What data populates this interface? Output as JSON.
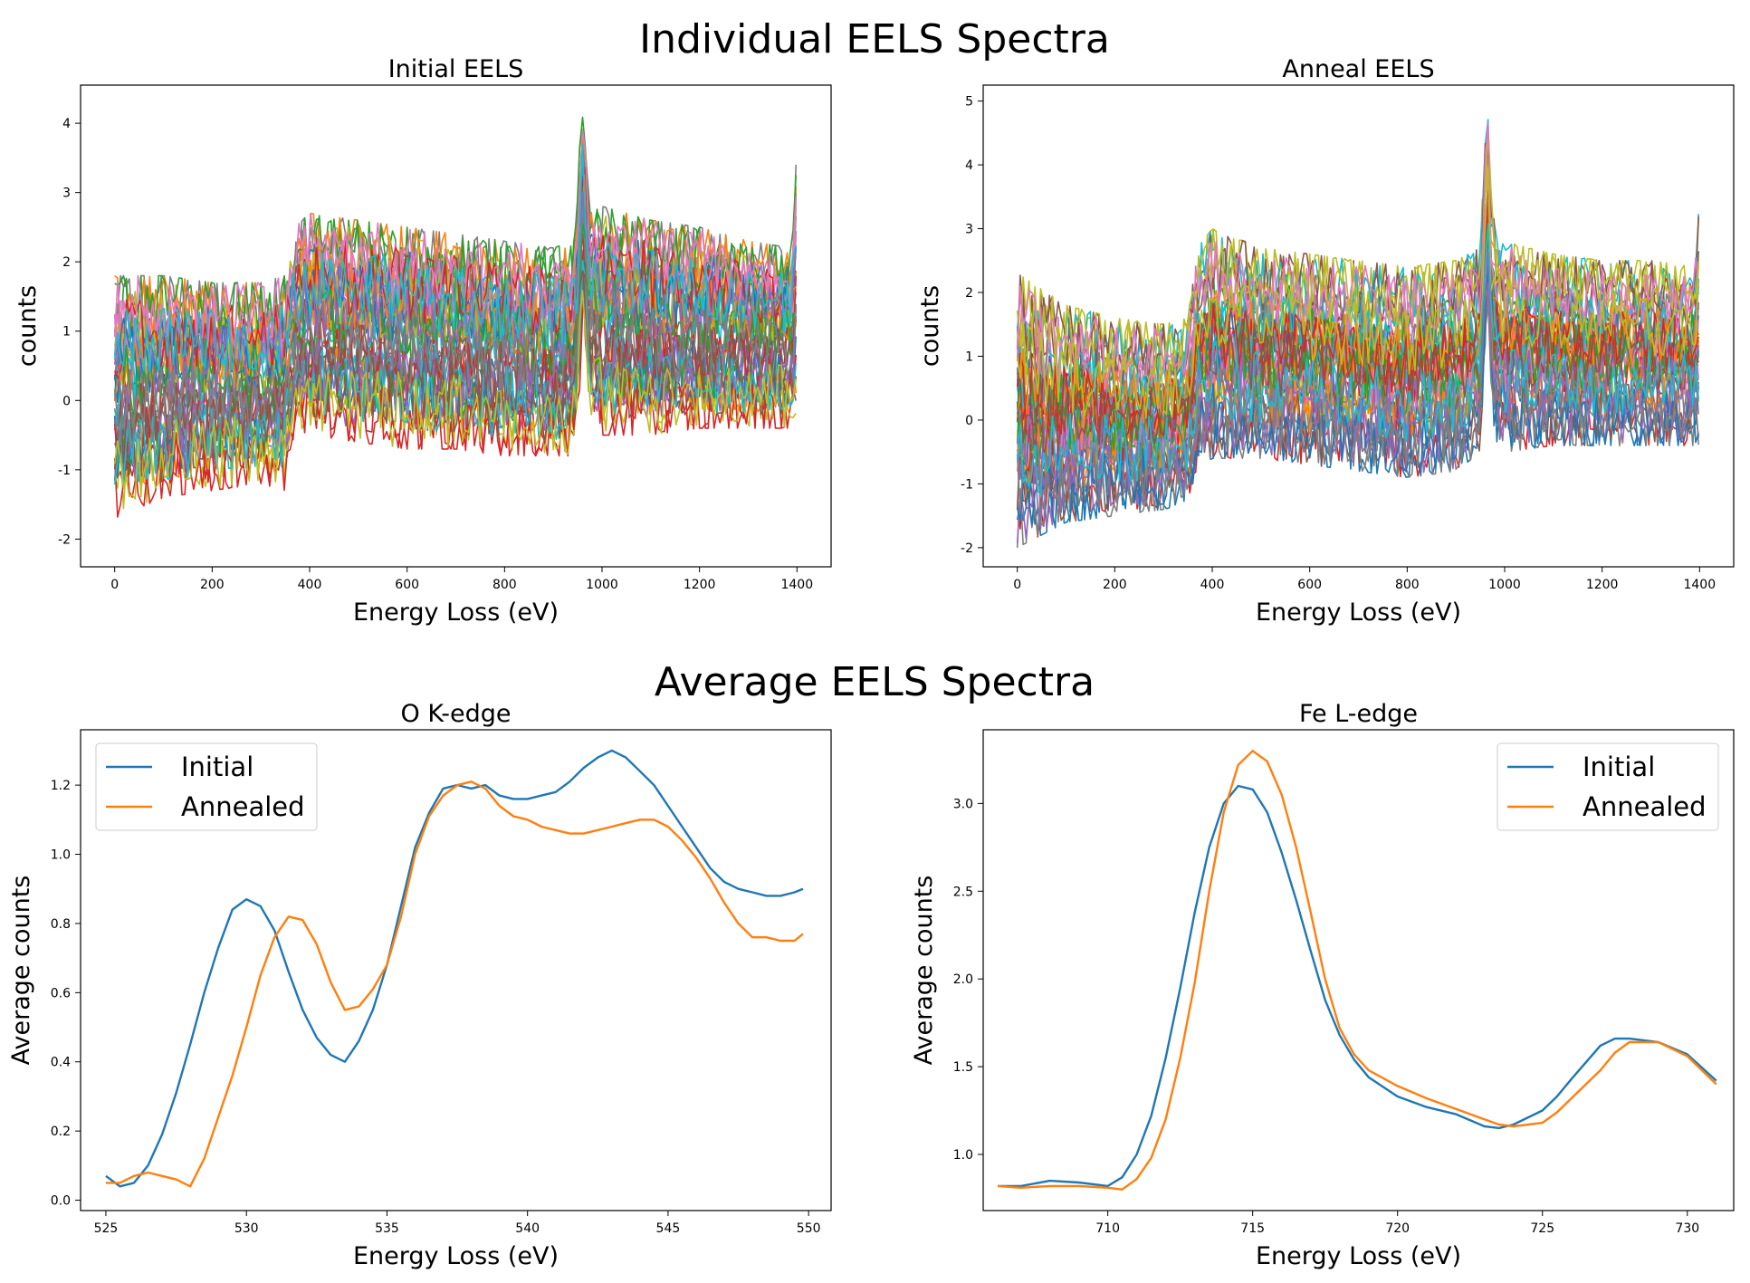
{
  "suptitles": {
    "individual": "Individual EELS Spectra",
    "average": "Average EELS Spectra"
  },
  "colors": {
    "initial": "#1f77b4",
    "annealed": "#ff7f0e",
    "cycle": [
      "#1f77b4",
      "#ff7f0e",
      "#2ca02c",
      "#d62728",
      "#9467bd",
      "#8c564b",
      "#e377c2",
      "#7f7f7f",
      "#bcbd22",
      "#17becf"
    ]
  },
  "chart_data": [
    {
      "id": "initial-eels",
      "type": "line",
      "title": "Initial EELS",
      "xlabel": "Energy Loss (eV)",
      "ylabel": "counts",
      "xlim": [
        -70,
        1470
      ],
      "ylim": [
        -2.4,
        4.55
      ],
      "xticks": [
        0,
        200,
        400,
        600,
        800,
        1000,
        1200,
        1400
      ],
      "yticks": [
        -2,
        -1,
        0,
        1,
        2,
        3,
        4
      ],
      "grid": false,
      "envelope": {
        "x": [
          0,
          100,
          200,
          300,
          350,
          370,
          400,
          500,
          600,
          700,
          800,
          900,
          945,
          955,
          962,
          968,
          975,
          1000,
          1100,
          1200,
          1300,
          1390,
          1400
        ],
        "low": [
          -1.7,
          -1.4,
          -1.3,
          -1.2,
          -1.3,
          -0.4,
          -0.5,
          -0.6,
          -0.7,
          -0.7,
          -0.8,
          -0.8,
          -0.8,
          0.2,
          1.5,
          0.5,
          -0.2,
          -0.5,
          -0.5,
          -0.4,
          -0.4,
          -0.4,
          -0.3
        ],
        "high": [
          1.8,
          1.8,
          1.7,
          1.7,
          1.8,
          2.5,
          2.7,
          2.6,
          2.5,
          2.4,
          2.3,
          2.2,
          2.3,
          3.8,
          4.2,
          3.5,
          2.7,
          2.8,
          2.6,
          2.5,
          2.3,
          2.2,
          3.7
        ]
      },
      "series_count": 40
    },
    {
      "id": "anneal-eels",
      "type": "line",
      "title": "Anneal EELS",
      "xlabel": "Energy Loss (eV)",
      "ylabel": "counts",
      "xlim": [
        -70,
        1470
      ],
      "ylim": [
        -2.3,
        5.25
      ],
      "xticks": [
        0,
        200,
        400,
        600,
        800,
        1000,
        1200,
        1400
      ],
      "yticks": [
        -2,
        -1,
        0,
        1,
        2,
        3,
        4,
        5
      ],
      "grid": false,
      "envelope": {
        "x": [
          0,
          100,
          200,
          300,
          350,
          370,
          400,
          500,
          600,
          700,
          800,
          900,
          950,
          958,
          965,
          972,
          980,
          1000,
          1100,
          1200,
          1300,
          1390,
          1400
        ],
        "low": [
          -2.0,
          -1.6,
          -1.5,
          -1.4,
          -1.3,
          -0.7,
          -0.6,
          -0.6,
          -0.7,
          -0.8,
          -0.9,
          -0.8,
          -0.5,
          0.8,
          2.0,
          0.5,
          -0.3,
          -0.5,
          -0.4,
          -0.4,
          -0.4,
          -0.4,
          -0.6
        ],
        "high": [
          2.3,
          1.8,
          1.6,
          1.5,
          1.6,
          2.7,
          3.0,
          2.7,
          2.6,
          2.5,
          2.4,
          2.5,
          2.7,
          4.2,
          4.9,
          3.6,
          3.0,
          2.8,
          2.6,
          2.5,
          2.5,
          2.4,
          3.5
        ]
      },
      "series_count": 40
    },
    {
      "id": "o-k-edge",
      "type": "line",
      "title": "O K-edge",
      "xlabel": "Energy Loss (eV)",
      "ylabel": "Average counts",
      "xlim": [
        524.1,
        550.8
      ],
      "ylim": [
        -0.03,
        1.36
      ],
      "xticks": [
        525,
        530,
        535,
        540,
        545,
        550
      ],
      "yticks": [
        0.0,
        0.2,
        0.4,
        0.6,
        0.8,
        1.0,
        1.2
      ],
      "ytick_labels": [
        "0.0",
        "0.2",
        "0.4",
        "0.6",
        "0.8",
        "1.0",
        "1.2"
      ],
      "grid": false,
      "legend": {
        "position": "upper-left",
        "entries": [
          "Initial",
          "Annealed"
        ]
      },
      "series": [
        {
          "name": "Initial",
          "x": [
            525.0,
            525.5,
            526.0,
            526.5,
            527.0,
            527.5,
            528.0,
            528.5,
            529.0,
            529.5,
            530.0,
            530.5,
            531.0,
            531.5,
            532.0,
            532.5,
            533.0,
            533.5,
            534.0,
            534.5,
            535.0,
            535.5,
            536.0,
            536.5,
            537.0,
            537.5,
            538.0,
            538.5,
            539.0,
            539.5,
            540.0,
            540.5,
            541.0,
            541.5,
            542.0,
            542.5,
            543.0,
            543.5,
            544.0,
            544.5,
            545.0,
            545.5,
            546.0,
            546.5,
            547.0,
            547.5,
            548.0,
            548.5,
            549.0,
            549.5,
            549.8
          ],
          "values": [
            0.07,
            0.04,
            0.05,
            0.1,
            0.19,
            0.31,
            0.45,
            0.6,
            0.73,
            0.84,
            0.87,
            0.85,
            0.78,
            0.66,
            0.55,
            0.47,
            0.42,
            0.4,
            0.46,
            0.55,
            0.68,
            0.85,
            1.02,
            1.12,
            1.19,
            1.2,
            1.19,
            1.2,
            1.17,
            1.16,
            1.16,
            1.17,
            1.18,
            1.21,
            1.25,
            1.28,
            1.3,
            1.28,
            1.24,
            1.2,
            1.14,
            1.08,
            1.02,
            0.96,
            0.92,
            0.9,
            0.89,
            0.88,
            0.88,
            0.89,
            0.9
          ]
        },
        {
          "name": "Annealed",
          "x": [
            525.0,
            525.5,
            526.0,
            526.5,
            527.0,
            527.5,
            528.0,
            528.5,
            529.0,
            529.5,
            530.0,
            530.5,
            531.0,
            531.5,
            532.0,
            532.5,
            533.0,
            533.5,
            534.0,
            534.5,
            535.0,
            535.5,
            536.0,
            536.5,
            537.0,
            537.5,
            538.0,
            538.5,
            539.0,
            539.5,
            540.0,
            540.5,
            541.0,
            541.5,
            542.0,
            542.5,
            543.0,
            543.5,
            544.0,
            544.5,
            545.0,
            545.5,
            546.0,
            546.5,
            547.0,
            547.5,
            548.0,
            548.5,
            549.0,
            549.5,
            549.8
          ],
          "values": [
            0.05,
            0.05,
            0.07,
            0.08,
            0.07,
            0.06,
            0.04,
            0.12,
            0.24,
            0.36,
            0.5,
            0.65,
            0.76,
            0.82,
            0.81,
            0.74,
            0.63,
            0.55,
            0.56,
            0.61,
            0.68,
            0.82,
            1.0,
            1.11,
            1.17,
            1.2,
            1.21,
            1.19,
            1.14,
            1.11,
            1.1,
            1.08,
            1.07,
            1.06,
            1.06,
            1.07,
            1.08,
            1.09,
            1.1,
            1.1,
            1.08,
            1.04,
            0.99,
            0.93,
            0.86,
            0.8,
            0.76,
            0.76,
            0.75,
            0.75,
            0.77
          ]
        }
      ]
    },
    {
      "id": "fe-l-edge",
      "type": "line",
      "title": "Fe L-edge",
      "xlabel": "Energy Loss (eV)",
      "ylabel": "Average counts",
      "xlim": [
        705.7,
        731.6
      ],
      "ylim": [
        0.68,
        3.42
      ],
      "xticks": [
        710,
        715,
        720,
        725,
        730
      ],
      "yticks": [
        1.0,
        1.5,
        2.0,
        2.5,
        3.0
      ],
      "ytick_labels": [
        "1.0",
        "1.5",
        "2.0",
        "2.5",
        "3.0"
      ],
      "grid": false,
      "legend": {
        "position": "upper-right",
        "entries": [
          "Initial",
          "Annealed"
        ]
      },
      "series": [
        {
          "name": "Initial",
          "x": [
            706.2,
            707,
            708,
            709,
            710,
            710.5,
            711,
            711.5,
            712,
            712.5,
            713,
            713.5,
            714,
            714.5,
            715,
            715.5,
            716,
            716.5,
            717,
            717.5,
            718,
            718.5,
            719,
            720,
            721,
            722,
            723,
            723.5,
            724,
            725,
            725.5,
            726,
            727,
            727.5,
            728,
            729,
            730,
            731
          ],
          "values": [
            0.82,
            0.82,
            0.85,
            0.84,
            0.82,
            0.87,
            1.0,
            1.22,
            1.55,
            1.95,
            2.38,
            2.75,
            3.0,
            3.1,
            3.08,
            2.95,
            2.72,
            2.45,
            2.16,
            1.88,
            1.68,
            1.54,
            1.44,
            1.33,
            1.27,
            1.23,
            1.16,
            1.15,
            1.17,
            1.25,
            1.33,
            1.43,
            1.62,
            1.66,
            1.66,
            1.64,
            1.57,
            1.42
          ]
        },
        {
          "name": "Annealed",
          "x": [
            706.2,
            707,
            708,
            709,
            710,
            710.5,
            711,
            711.5,
            712,
            712.5,
            713,
            713.5,
            714,
            714.5,
            715,
            715.5,
            716,
            716.5,
            717,
            717.5,
            718,
            718.5,
            719,
            720,
            721,
            722,
            723,
            723.5,
            724,
            725,
            725.5,
            726,
            727,
            727.5,
            728,
            729,
            730,
            731
          ],
          "values": [
            0.82,
            0.81,
            0.82,
            0.82,
            0.81,
            0.8,
            0.86,
            0.98,
            1.2,
            1.55,
            1.98,
            2.5,
            2.95,
            3.22,
            3.3,
            3.24,
            3.05,
            2.75,
            2.38,
            2.0,
            1.72,
            1.57,
            1.48,
            1.39,
            1.32,
            1.26,
            1.2,
            1.17,
            1.16,
            1.18,
            1.24,
            1.32,
            1.48,
            1.58,
            1.64,
            1.64,
            1.56,
            1.4
          ]
        }
      ]
    }
  ]
}
